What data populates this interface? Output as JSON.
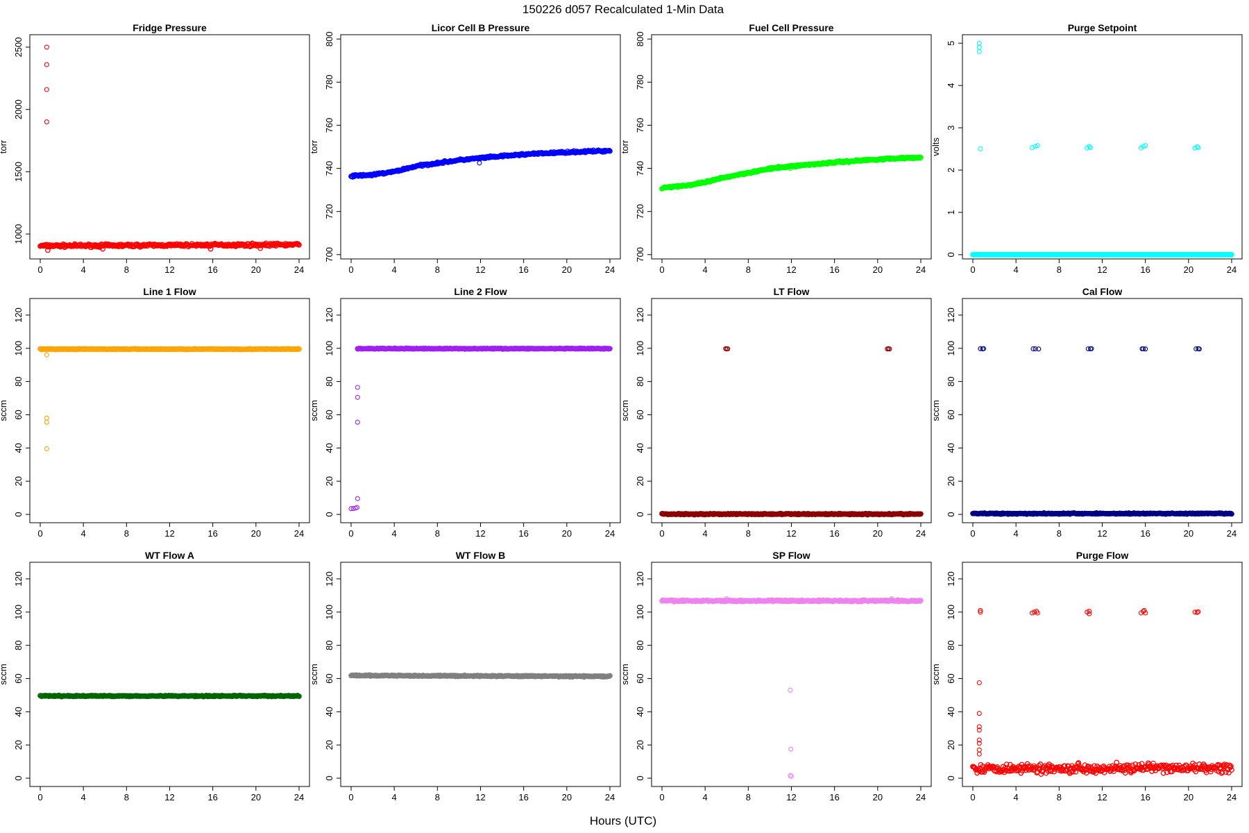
{
  "figure": {
    "title": "150226   d057   Recalculated 1-Min Data",
    "xlabel": "Hours (UTC)"
  },
  "chart_data": [
    {
      "type": "scatter",
      "title": "Fridge Pressure",
      "ylabel": "torr",
      "color": "#ff0000",
      "xlim": [
        0,
        24
      ],
      "ylim": [
        800,
        2600
      ],
      "yticks": [
        1000,
        1500,
        2000,
        2500
      ],
      "xticks": [
        0,
        4,
        8,
        12,
        16,
        20,
        24
      ],
      "base": {
        "value": 905,
        "drift": [
          [
            0,
            905
          ],
          [
            24,
            915
          ]
        ],
        "noise": 10
      },
      "outliers": [
        [
          0.6,
          2500
        ],
        [
          0.6,
          2360
        ],
        [
          0.6,
          2160
        ],
        [
          0.6,
          1900
        ]
      ],
      "dips": [
        [
          0.7,
          870
        ],
        [
          5.8,
          880
        ],
        [
          15.8,
          880
        ],
        [
          20.4,
          885
        ]
      ]
    },
    {
      "type": "scatter",
      "title": "Licor Cell B Pressure",
      "ylabel": "torr",
      "color": "#0000ff",
      "xlim": [
        0,
        24
      ],
      "ylim": [
        698,
        802
      ],
      "yticks": [
        700,
        720,
        740,
        760,
        780,
        800
      ],
      "xticks": [
        0,
        4,
        8,
        12,
        16,
        20,
        24
      ],
      "base": {
        "drift": [
          [
            0,
            736.5
          ],
          [
            2,
            737
          ],
          [
            4,
            738.5
          ],
          [
            6,
            741
          ],
          [
            8,
            742.5
          ],
          [
            10,
            743.8
          ],
          [
            12,
            744.8
          ],
          [
            16,
            746.5
          ],
          [
            20,
            747.5
          ],
          [
            24,
            748.2
          ]
        ],
        "noise": 0.4
      },
      "outliers": [
        [
          11.9,
          742.5
        ]
      ]
    },
    {
      "type": "scatter",
      "title": "Fuel Cell Pressure",
      "ylabel": "torr",
      "color": "#00ff00",
      "xlim": [
        0,
        24
      ],
      "ylim": [
        698,
        802
      ],
      "yticks": [
        700,
        720,
        740,
        760,
        780,
        800
      ],
      "xticks": [
        0,
        4,
        8,
        12,
        16,
        20,
        24
      ],
      "base": {
        "drift": [
          [
            0,
            731
          ],
          [
            3,
            732.5
          ],
          [
            4,
            733.5
          ],
          [
            6,
            736
          ],
          [
            8,
            738
          ],
          [
            10,
            739.8
          ],
          [
            12,
            741
          ],
          [
            16,
            742.8
          ],
          [
            20,
            744.2
          ],
          [
            24,
            745.2
          ]
        ],
        "noise": 0.4
      },
      "outliers": [
        [
          11.9,
          740
        ]
      ]
    },
    {
      "type": "scatter",
      "title": "Purge Setpoint",
      "ylabel": "volts",
      "color": "#00ffff",
      "xlim": [
        0,
        24
      ],
      "ylim": [
        -0.1,
        5.2
      ],
      "yticks": [
        0,
        1,
        2,
        3,
        4,
        5
      ],
      "xticks": [
        0,
        4,
        8,
        12,
        16,
        20,
        24
      ],
      "base": {
        "value": 0,
        "noise": 0
      },
      "outliers": [
        [
          0.6,
          5.0
        ],
        [
          0.6,
          4.9
        ],
        [
          0.6,
          4.8
        ],
        [
          0.7,
          2.5
        ],
        [
          5.5,
          2.53
        ],
        [
          5.8,
          2.56
        ],
        [
          6.0,
          2.58
        ],
        [
          10.6,
          2.52
        ],
        [
          10.8,
          2.56
        ],
        [
          10.9,
          2.53
        ],
        [
          15.6,
          2.52
        ],
        [
          15.8,
          2.56
        ],
        [
          16.0,
          2.58
        ],
        [
          20.6,
          2.52
        ],
        [
          20.8,
          2.55
        ],
        [
          20.9,
          2.53
        ]
      ]
    },
    {
      "type": "scatter",
      "title": "Line 1 Flow",
      "ylabel": "sccm",
      "color": "#ffa500",
      "xlim": [
        0,
        24
      ],
      "ylim": [
        -5,
        130
      ],
      "yticks": [
        0,
        20,
        40,
        60,
        80,
        100,
        120
      ],
      "xticks": [
        0,
        4,
        8,
        12,
        16,
        20,
        24
      ],
      "base": {
        "value": 99.5,
        "noise": 0.2
      },
      "outliers": [
        [
          0.6,
          96
        ],
        [
          0.6,
          58
        ],
        [
          0.6,
          55.5
        ],
        [
          0.6,
          39.5
        ]
      ]
    },
    {
      "type": "scatter",
      "title": "Line 2 Flow",
      "ylabel": "sccm",
      "color": "#a020f0",
      "xlim": [
        0,
        24
      ],
      "ylim": [
        -5,
        130
      ],
      "yticks": [
        0,
        20,
        40,
        60,
        80,
        100,
        120
      ],
      "xticks": [
        0,
        4,
        8,
        12,
        16,
        20,
        24
      ],
      "base": {
        "value": 99.8,
        "noise": 0.2,
        "start": 0.6
      },
      "outliers": [
        [
          0.0,
          3.5
        ],
        [
          0.2,
          3.5
        ],
        [
          0.4,
          3.8
        ],
        [
          0.55,
          4.2
        ],
        [
          0.6,
          9.5
        ],
        [
          0.6,
          55.5
        ],
        [
          0.6,
          70.5
        ],
        [
          0.6,
          76.5
        ]
      ]
    },
    {
      "type": "scatter",
      "title": "LT Flow",
      "ylabel": "sccm",
      "color": "#8b0000",
      "xlim": [
        0,
        24
      ],
      "ylim": [
        -5,
        130
      ],
      "yticks": [
        0,
        20,
        40,
        60,
        80,
        100,
        120
      ],
      "xticks": [
        0,
        4,
        8,
        12,
        16,
        20,
        24
      ],
      "base": {
        "value": 0.2,
        "noise": 0.3
      },
      "outliers": [
        [
          5.9,
          99.8
        ],
        [
          6.0,
          99.6
        ],
        [
          6.1,
          99.7
        ],
        [
          20.9,
          99.6
        ],
        [
          21.0,
          99.8
        ],
        [
          21.1,
          99.6
        ]
      ]
    },
    {
      "type": "scatter",
      "title": "Cal Flow",
      "ylabel": "sccm",
      "color": "#000080",
      "xlim": [
        0,
        24
      ],
      "ylim": [
        -5,
        130
      ],
      "yticks": [
        0,
        20,
        40,
        60,
        80,
        100,
        120
      ],
      "xticks": [
        0,
        4,
        8,
        12,
        16,
        20,
        24
      ],
      "base": {
        "value": 0.5,
        "noise": 0.3
      },
      "outliers": [
        [
          0.7,
          99.8
        ],
        [
          0.9,
          99.7
        ],
        [
          1.0,
          99.8
        ],
        [
          5.6,
          99.7
        ],
        [
          5.8,
          99.7
        ],
        [
          6.1,
          99.6
        ],
        [
          10.7,
          99.7
        ],
        [
          10.9,
          99.7
        ],
        [
          11.0,
          99.8
        ],
        [
          15.7,
          99.7
        ],
        [
          15.8,
          99.7
        ],
        [
          16.0,
          99.6
        ],
        [
          20.7,
          99.7
        ],
        [
          20.9,
          99.8
        ],
        [
          21.0,
          99.6
        ]
      ]
    },
    {
      "type": "scatter",
      "title": "WT Flow A",
      "ylabel": "sccm",
      "color": "#006400",
      "xlim": [
        0,
        24
      ],
      "ylim": [
        -5,
        130
      ],
      "yticks": [
        0,
        20,
        40,
        60,
        80,
        100,
        120
      ],
      "xticks": [
        0,
        4,
        8,
        12,
        16,
        20,
        24
      ],
      "base": {
        "value": 49.5,
        "noise": 0.3
      },
      "outliers": []
    },
    {
      "type": "scatter",
      "title": "WT Flow B",
      "ylabel": "sccm",
      "color": "#808080",
      "xlim": [
        0,
        24
      ],
      "ylim": [
        -5,
        130
      ],
      "yticks": [
        0,
        20,
        40,
        60,
        80,
        100,
        120
      ],
      "xticks": [
        0,
        4,
        8,
        12,
        16,
        20,
        24
      ],
      "base": {
        "drift": [
          [
            0,
            61.8
          ],
          [
            24,
            61.3
          ]
        ],
        "noise": 0.3
      },
      "outliers": []
    },
    {
      "type": "scatter",
      "title": "SP Flow",
      "ylabel": "sccm",
      "color": "#ee82ee",
      "xlim": [
        0,
        24
      ],
      "ylim": [
        -5,
        130
      ],
      "yticks": [
        0,
        20,
        40,
        60,
        80,
        100,
        120
      ],
      "xticks": [
        0,
        4,
        8,
        12,
        16,
        20,
        24
      ],
      "base": {
        "value": 106.8,
        "noise": 0.4
      },
      "outliers": [
        [
          6.0,
          108
        ],
        [
          21.3,
          108
        ],
        [
          11.9,
          53
        ],
        [
          11.95,
          17.5
        ],
        [
          11.9,
          1.5
        ],
        [
          12.0,
          1.2
        ]
      ]
    },
    {
      "type": "scatter",
      "title": "Purge Flow",
      "ylabel": "sccm",
      "color": "#ff0000",
      "xlim": [
        0,
        24
      ],
      "ylim": [
        -5,
        130
      ],
      "yticks": [
        0,
        20,
        40,
        60,
        80,
        100,
        120
      ],
      "xticks": [
        0,
        4,
        8,
        12,
        16,
        20,
        24
      ],
      "base": {
        "value": 6,
        "noise": 2.5,
        "spread": true
      },
      "outliers": [
        [
          0.6,
          57.5
        ],
        [
          0.6,
          39
        ],
        [
          0.6,
          31
        ],
        [
          0.6,
          29
        ],
        [
          0.6,
          23
        ],
        [
          0.6,
          21
        ],
        [
          0.6,
          17
        ],
        [
          0.6,
          14.5
        ],
        [
          0.7,
          100
        ],
        [
          0.7,
          101
        ],
        [
          5.5,
          99.5
        ],
        [
          5.7,
          100
        ],
        [
          5.9,
          100.5
        ],
        [
          6.0,
          99.5
        ],
        [
          10.6,
          100
        ],
        [
          10.8,
          99
        ],
        [
          10.8,
          100.5
        ],
        [
          15.6,
          99.5
        ],
        [
          15.8,
          100.5
        ],
        [
          15.9,
          101
        ],
        [
          16.0,
          99.5
        ],
        [
          20.6,
          100
        ],
        [
          20.8,
          99.8
        ],
        [
          20.9,
          100.2
        ]
      ]
    }
  ]
}
